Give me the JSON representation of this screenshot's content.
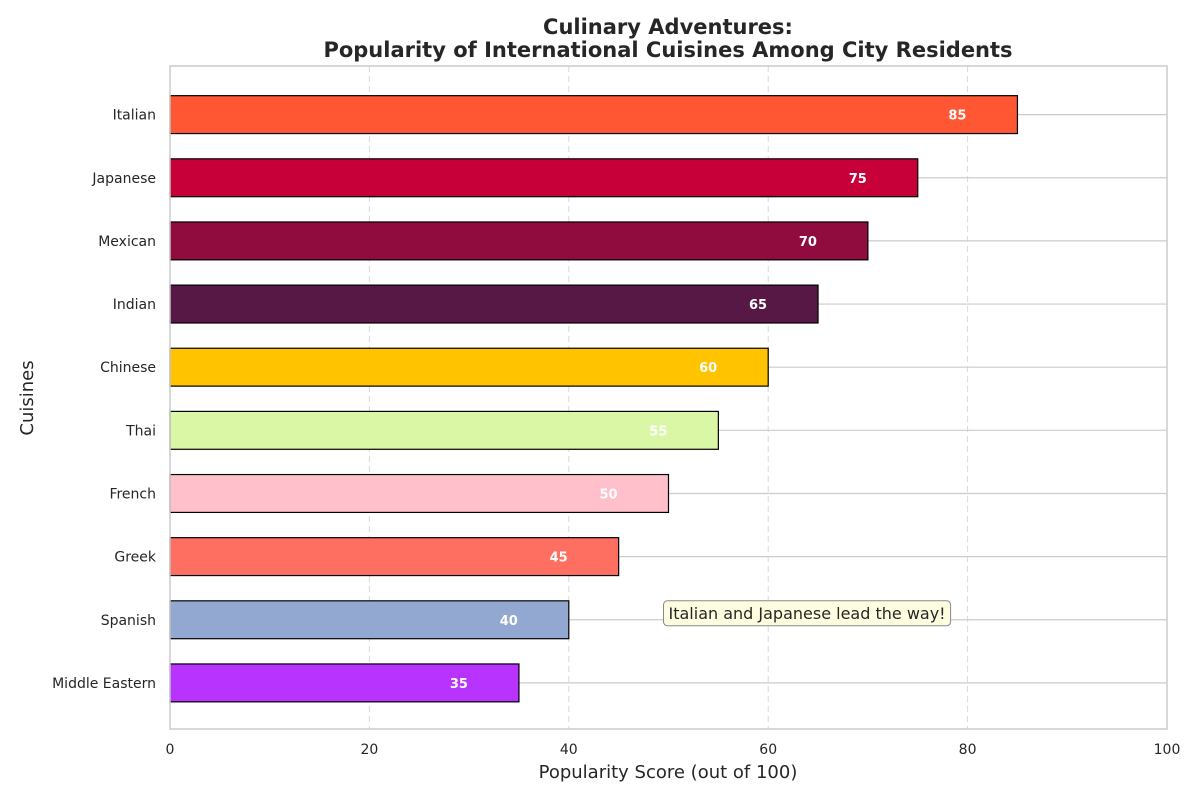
{
  "chart_data": {
    "type": "bar",
    "orientation": "horizontal",
    "title": "Culinary Adventures:",
    "subtitle": "Popularity of International Cuisines Among City Residents",
    "xlabel": "Popularity Score (out of 100)",
    "ylabel": "Cuisines",
    "xlim": [
      0,
      100
    ],
    "xticks": [
      0,
      20,
      40,
      60,
      80,
      100
    ],
    "grid": true,
    "categories": [
      "Italian",
      "Japanese",
      "Mexican",
      "Indian",
      "Chinese",
      "Thai",
      "French",
      "Greek",
      "Spanish",
      "Middle Eastern"
    ],
    "values": [
      85,
      75,
      70,
      65,
      60,
      55,
      50,
      45,
      40,
      35
    ],
    "colors": [
      "#FF5733",
      "#C70039",
      "#900C3F",
      "#581845",
      "#FFC300",
      "#DAF7A6",
      "#FFC0CB",
      "#FF6F61",
      "#92A8D1",
      "#B933FF"
    ],
    "annotation": "Italian and Japanese lead the way!"
  }
}
